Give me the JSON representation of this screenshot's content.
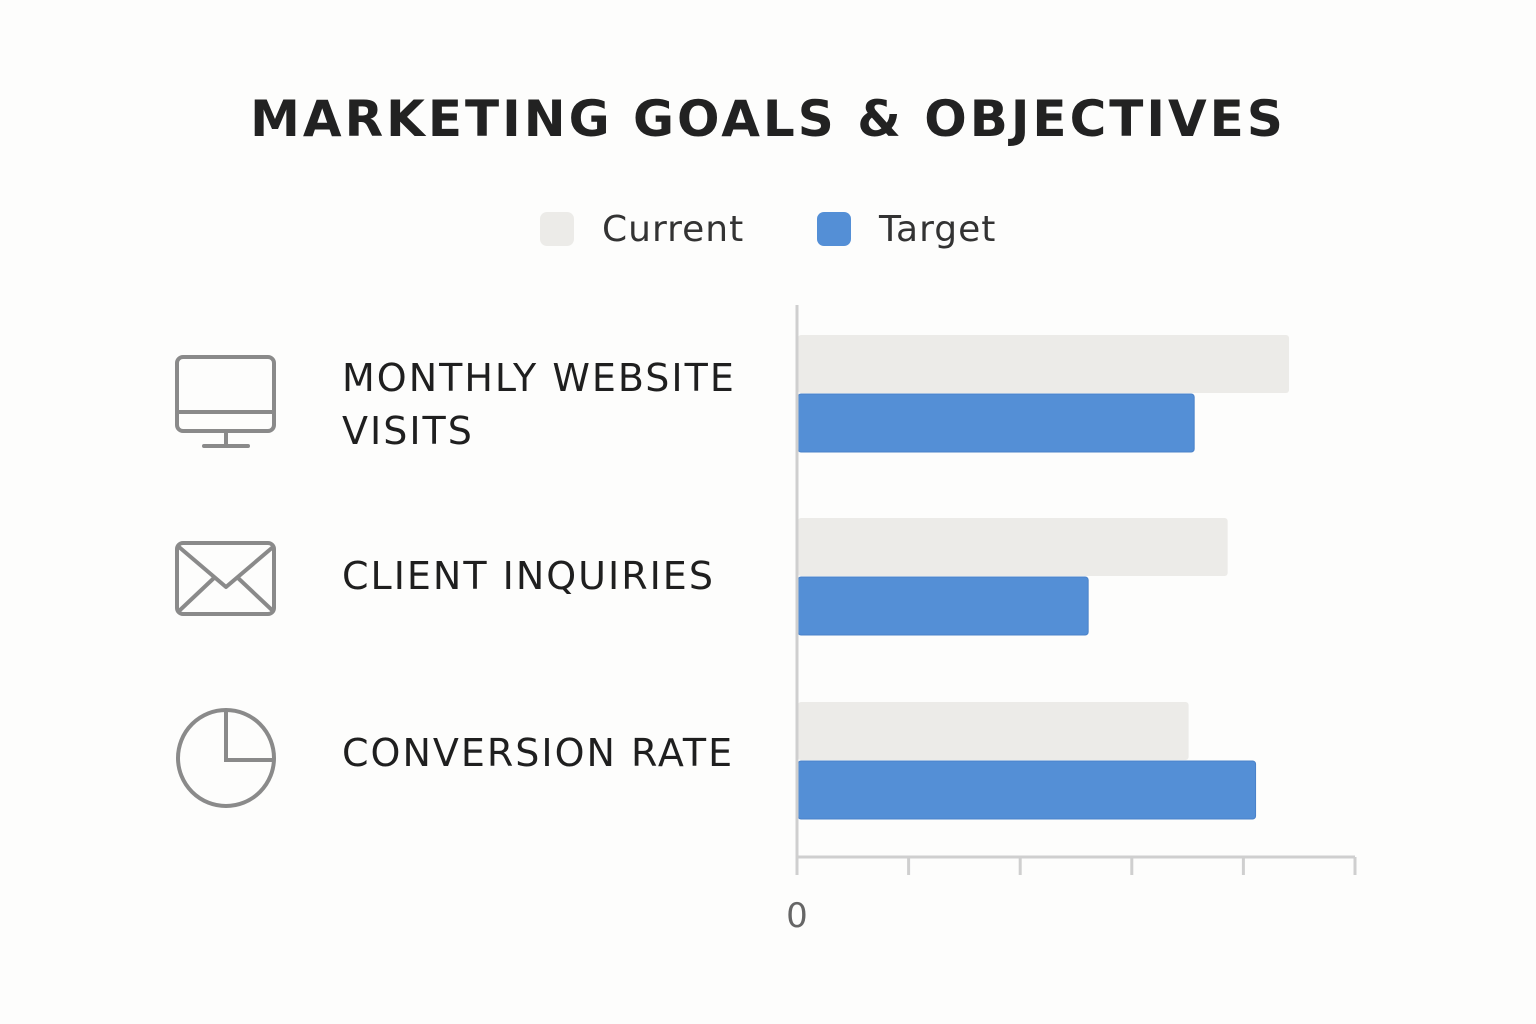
{
  "title": "MARKETING GOALS & OBJECTIVES",
  "colors": {
    "current": "#ecebe8",
    "target": "#548fd6",
    "axis": "#cfcfcf",
    "icon": "#8a8a8a"
  },
  "legend": [
    {
      "label": "Current",
      "color": "#ecebe8"
    },
    {
      "label": "Target",
      "color": "#548fd6"
    }
  ],
  "rows": [
    {
      "label": "MONTHLY WEBSITE\nVISITS",
      "icon": "monitor-icon"
    },
    {
      "label": "CLIENT INQUIRIES",
      "icon": "envelope-icon"
    },
    {
      "label": "CONVERSION RATE",
      "icon": "pie-chart-icon"
    }
  ],
  "chart_data": {
    "type": "bar",
    "orientation": "horizontal",
    "title": "MARKETING GOALS & OBJECTIVES",
    "categories": [
      "MONTHLY WEBSITE VISITS",
      "CLIENT INQUIRIES",
      "CONVERSION RATE"
    ],
    "series": [
      {
        "name": "Current",
        "values": [
          4.4,
          3.85,
          3.5
        ]
      },
      {
        "name": "Target",
        "values": [
          3.55,
          2.6,
          4.1
        ]
      }
    ],
    "xlim": [
      0,
      5
    ],
    "x_tick_count": 6,
    "x_tick_labels": [
      "0"
    ],
    "legend_position": "top",
    "grid": false
  }
}
